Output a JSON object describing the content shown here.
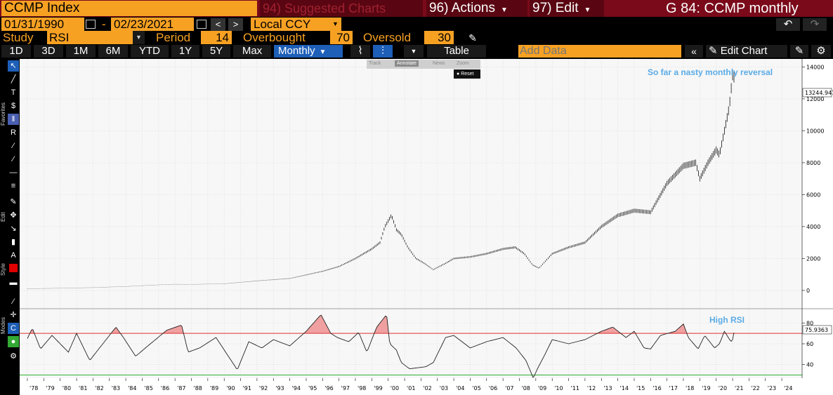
{
  "header": {
    "security": "CCMP Index",
    "suggested": "94) Suggested Charts",
    "actions": "96) Actions",
    "edit": "97) Edit",
    "title": "G 84: CCMP monthly"
  },
  "range": {
    "start": "01/31/1990",
    "dash": "-",
    "end": "02/23/2021",
    "currency": "Local CCY"
  },
  "study": {
    "label": "Study",
    "value": "RSI",
    "period_label": "Period",
    "period": "14",
    "overbought_label": "Overbought",
    "overbought": "70",
    "oversold_label": "Oversold",
    "oversold": "30"
  },
  "toolbar": {
    "periods": [
      "1D",
      "3D",
      "1M",
      "6M",
      "YTD",
      "1Y",
      "5Y",
      "Max"
    ],
    "frequency": "Monthly",
    "table": "Table",
    "add_data_placeholder": "Add Data",
    "edit_chart": "Edit Chart"
  },
  "popup": {
    "track": "Track",
    "annotate": "Annotate",
    "news": "News",
    "zoom": "Zoom",
    "reset": "Reset"
  },
  "side_labels": {
    "favorites": "Favorites",
    "edit": "Edit",
    "style": "Style",
    "modes": "Modes"
  },
  "colors": {
    "orange": "#f7a123",
    "dark_red": "#7a0a1a",
    "annotation_blue": "#5aabe6",
    "overbought_line": "#e03030",
    "oversold_line": "#30b030",
    "rsi_fill": "#f0a0a0"
  },
  "chart_data": [
    {
      "type": "line",
      "subtype": "ohlc-bars",
      "series": [
        {
          "name": "CCMP Index",
          "frequency": "monthly"
        }
      ],
      "x": [
        1978,
        1980,
        1982,
        1984,
        1986,
        1987,
        1988,
        1990,
        1992,
        1994,
        1996,
        1997,
        1998,
        1999,
        1999.5,
        1999.8,
        2000.2,
        2000.5,
        2000.8,
        2001.2,
        2001.7,
        2002.2,
        2002.75,
        2003.5,
        2004,
        2005,
        2006,
        2007,
        2007.75,
        2008.3,
        2008.8,
        2009.2,
        2010,
        2011,
        2012,
        2013,
        2014,
        2015,
        2016,
        2017,
        2018,
        2018.75,
        2019,
        2019.5,
        2020,
        2020.2,
        2020.5,
        2020.8,
        2021.0,
        2021.15
      ],
      "values": [
        110,
        140,
        180,
        250,
        350,
        390,
        380,
        420,
        600,
        750,
        1200,
        1500,
        2000,
        2600,
        3000,
        4000,
        4700,
        3800,
        3500,
        2700,
        2000,
        1700,
        1300,
        1700,
        2000,
        2100,
        2300,
        2600,
        2700,
        2300,
        1600,
        1400,
        2300,
        2700,
        3000,
        4000,
        4700,
        5000,
        4900,
        6700,
        7800,
        8000,
        7000,
        8000,
        8800,
        8500,
        10000,
        11500,
        13500,
        13244.941
      ],
      "ylim": [
        -1100,
        14500
      ],
      "yticks": [
        0,
        2000,
        4000,
        6000,
        8000,
        10000,
        12000,
        14000
      ],
      "last_value_label": "13244.941",
      "annotation": "So far a nasty monthly reversal"
    },
    {
      "type": "line",
      "series": [
        {
          "name": "RSI"
        }
      ],
      "x": [
        1978,
        1978.3,
        1978.8,
        1979.5,
        1980.5,
        1981,
        1981.8,
        1982.6,
        1983.4,
        1983.9,
        1984.6,
        1985.5,
        1986.5,
        1987.4,
        1987.8,
        1988.5,
        1989.5,
        1990.8,
        1991.5,
        1992.3,
        1993,
        1994,
        1995,
        1995.9,
        1996.5,
        1996.9,
        1997.6,
        1998.2,
        1998.7,
        1999.3,
        1999.9,
        2000.1,
        2000.5,
        2000.8,
        2001.3,
        2002.3,
        2002.75,
        2003.5,
        2004,
        2005,
        2006,
        2007,
        2007.8,
        2008.4,
        2008.85,
        2009.1,
        2009.5,
        2010,
        2011,
        2012,
        2013,
        2013.7,
        2014.5,
        2015,
        2015.6,
        2016,
        2016.6,
        2017.5,
        2018,
        2018.3,
        2018.9,
        2019.3,
        2019.9,
        2020.2,
        2020.5,
        2020.9,
        2021.0,
        2021.15
      ],
      "values": [
        65,
        75,
        55,
        68,
        52,
        70,
        44,
        60,
        76,
        65,
        48,
        60,
        73,
        78,
        52,
        56,
        66,
        35,
        62,
        56,
        64,
        58,
        72,
        88,
        70,
        66,
        62,
        71,
        52,
        76,
        88,
        60,
        54,
        42,
        36,
        38,
        42,
        66,
        68,
        56,
        62,
        66,
        56,
        44,
        27,
        36,
        48,
        64,
        60,
        64,
        72,
        76,
        66,
        72,
        56,
        55,
        68,
        72,
        79,
        66,
        55,
        68,
        56,
        60,
        72,
        62,
        64,
        75.9363
      ],
      "overbought": 70,
      "oversold": 30,
      "ylim": [
        27,
        93
      ],
      "yticks": [
        40,
        60,
        80
      ],
      "last_value_label": "75.9363",
      "annotation": "High RSI"
    }
  ],
  "x_axis": {
    "ticks": [
      "'78",
      "'79",
      "'80",
      "'81",
      "'82",
      "'83",
      "'84",
      "'85",
      "'86",
      "'87",
      "'88",
      "'89",
      "'90",
      "'91",
      "'92",
      "'93",
      "'94",
      "'95",
      "'96",
      "'97",
      "'98",
      "'99",
      "'00",
      "'01",
      "'02",
      "'03",
      "'04",
      "'05",
      "'06",
      "'07",
      "'08",
      "'09",
      "'10",
      "'11",
      "'12",
      "'13",
      "'14",
      "'15",
      "'16",
      "'17",
      "'18",
      "'19",
      "'20",
      "'21",
      "'22",
      "'23",
      "'24"
    ]
  }
}
